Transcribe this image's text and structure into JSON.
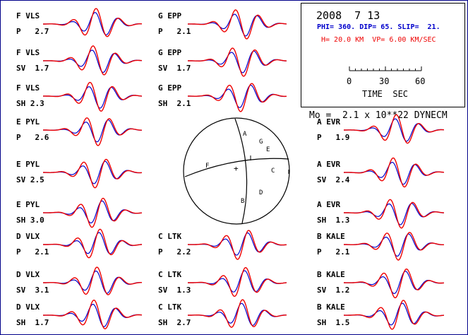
{
  "date": "2008  7 13",
  "mechanism": "PHI= 360. DIP= 65. SLIP=  21.",
  "depth_velocity": "H= 20.0 KM  VP= 6.00 KM/SEC",
  "scale": {
    "ticks": [
      "0",
      "30",
      "60"
    ],
    "label": "TIME  SEC"
  },
  "moment": "Mo =  2.1 x 10**22 DYNECM",
  "colors": {
    "observed": "#0000cc",
    "synthetic": "#ee0000",
    "frame": "#00008a"
  },
  "beachball": {
    "stations": [
      "A",
      "G",
      "E",
      "C",
      "F",
      "B",
      "D"
    ],
    "center_mark": "+"
  },
  "traces": [
    {
      "station": "F VLS",
      "comp": "P   2.7",
      "col": 0,
      "row": 0
    },
    {
      "station": "F VLS",
      "comp": "SV  1.7",
      "col": 0,
      "row": 1
    },
    {
      "station": "F VLS",
      "comp": "SH 2.3",
      "col": 0,
      "row": 2
    },
    {
      "station": "E PYL",
      "comp": "P   2.6",
      "col": 0,
      "row": 3
    },
    {
      "station": "E PYL",
      "comp": "SV 2.5",
      "col": 0,
      "row": 4
    },
    {
      "station": "E PYL",
      "comp": "SH 3.0",
      "col": 0,
      "row": 5
    },
    {
      "station": "D VLX",
      "comp": "P   2.1",
      "col": 0,
      "row": 6
    },
    {
      "station": "D VLX",
      "comp": "SV  3.1",
      "col": 0,
      "row": 7
    },
    {
      "station": "D VLX",
      "comp": "SH  1.7",
      "col": 0,
      "row": 8
    },
    {
      "station": "G EPP",
      "comp": "P   2.1",
      "col": 1,
      "row": 0
    },
    {
      "station": "G EPP",
      "comp": "SV  1.7",
      "col": 1,
      "row": 1
    },
    {
      "station": "G EPP",
      "comp": "SH  2.1",
      "col": 1,
      "row": 2
    },
    {
      "station": "C LTK",
      "comp": "P   2.2",
      "col": 1,
      "row": 6
    },
    {
      "station": "C LTK",
      "comp": "SV  1.3",
      "col": 1,
      "row": 7
    },
    {
      "station": "C LTK",
      "comp": "SH  2.7",
      "col": 1,
      "row": 8
    },
    {
      "station": "A EVR",
      "comp": "P   1.9",
      "col": 2,
      "row": 3
    },
    {
      "station": "A EVR",
      "comp": "SV  2.4",
      "col": 2,
      "row": 4
    },
    {
      "station": "A EVR",
      "comp": "SH  1.3",
      "col": 2,
      "row": 5
    },
    {
      "station": "B KALE",
      "comp": "P   2.1",
      "col": 2,
      "row": 6
    },
    {
      "station": "B KALE",
      "comp": "SV  1.2",
      "col": 2,
      "row": 7
    },
    {
      "station": "B KALE",
      "comp": "SH  1.5",
      "col": 2,
      "row": 8
    }
  ]
}
